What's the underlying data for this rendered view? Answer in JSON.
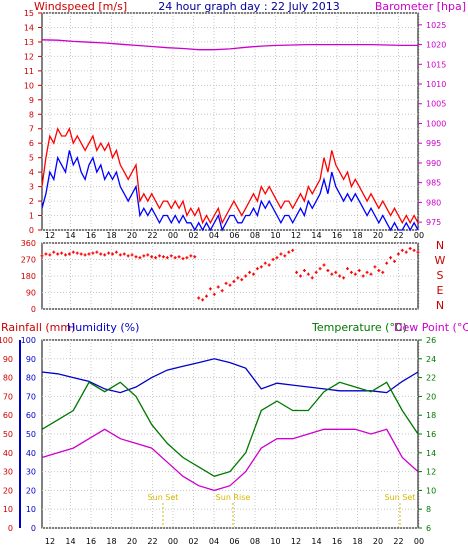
{
  "chart_data": [
    {
      "type": "line",
      "title": "24 hour graph day : 22 July 2013",
      "left_axis_label": "Windspeed [m/s]",
      "right_axis_label": "Barometer [hpa]",
      "x_ticks": [
        "12",
        "14",
        "16",
        "18",
        "20",
        "22",
        "00",
        "02",
        "04",
        "06",
        "08",
        "10",
        "12",
        "14",
        "16",
        "18",
        "20",
        "22",
        "00"
      ],
      "left_ticks": [
        "0",
        "1",
        "2",
        "3",
        "4",
        "5",
        "6",
        "7",
        "8",
        "9",
        "10",
        "11",
        "12",
        "13",
        "14",
        "15"
      ],
      "right_ticks": [
        "975",
        "980",
        "985",
        "990",
        "995",
        "1000",
        "1005",
        "1010",
        "1015",
        "1020",
        "1025"
      ],
      "left_ylim": [
        0,
        15
      ],
      "right_ylim": [
        973,
        1028
      ],
      "series": [
        {
          "axis": "right",
          "color": "#cc00cc",
          "x": [
            0,
            2,
            4,
            6,
            8,
            10,
            12,
            14,
            16,
            18,
            20,
            22,
            24,
            26,
            28,
            30,
            32,
            34,
            36,
            38,
            40,
            42,
            44,
            46,
            48
          ],
          "values": [
            1021.2,
            1021.1,
            1020.8,
            1020.6,
            1020.4,
            1020.1,
            1019.8,
            1019.5,
            1019.2,
            1019.0,
            1018.7,
            1018.7,
            1018.9,
            1019.3,
            1019.6,
            1019.8,
            1019.9,
            1020.0,
            1020.0,
            1020.0,
            1020.0,
            1020.0,
            1019.9,
            1019.8,
            1019.8
          ]
        },
        {
          "axis": "left",
          "color": "#ff0000",
          "x": [
            0,
            0.5,
            1,
            1.5,
            2,
            2.5,
            3,
            3.5,
            4,
            4.5,
            5,
            5.5,
            6,
            6.5,
            7,
            7.5,
            8,
            8.5,
            9,
            9.5,
            10,
            10.5,
            11,
            11.5,
            12,
            12.5,
            13,
            13.5,
            14,
            14.5,
            15,
            15.5,
            16,
            16.5,
            17,
            17.5,
            18,
            18.5,
            19,
            19.5,
            20,
            20.5,
            21,
            21.5,
            22,
            22.5,
            23,
            23.5,
            24,
            24.5,
            25,
            25.5,
            26,
            26.5,
            27,
            27.5,
            28,
            28.5,
            29,
            29.5,
            30,
            30.5,
            31,
            31.5,
            32,
            32.5,
            33,
            33.5,
            34,
            34.5,
            35,
            35.5,
            36,
            36.5,
            37,
            37.5,
            38,
            38.5,
            39,
            39.5,
            40,
            40.5,
            41,
            41.5,
            42,
            42.5,
            43,
            43.5,
            44,
            44.5,
            45,
            45.5,
            46,
            46.5,
            47,
            47.5,
            48
          ],
          "values": [
            3,
            5,
            6.5,
            6,
            7,
            6.5,
            6.5,
            7,
            6,
            6.5,
            6,
            5.5,
            6,
            6.5,
            5.5,
            6,
            5.5,
            6,
            5,
            5.5,
            4.5,
            4,
            3.5,
            4,
            4.5,
            2,
            2.5,
            2,
            2.5,
            2,
            1.5,
            2,
            2,
            1.5,
            2,
            1.5,
            2,
            1,
            1.5,
            1,
            1.5,
            0.5,
            1,
            0.5,
            1,
            1.5,
            0.5,
            1,
            1.5,
            2,
            1.5,
            1,
            1.5,
            2,
            2.5,
            2,
            3,
            2.5,
            3,
            2.5,
            2,
            1.5,
            2,
            2,
            1.5,
            2,
            2.5,
            2,
            3,
            2.5,
            3,
            3.5,
            5,
            4,
            5.5,
            4.5,
            4,
            3.5,
            4,
            3,
            3.5,
            3,
            2.5,
            2,
            2.5,
            2,
            1.5,
            2,
            1.5,
            1,
            1.5,
            1,
            0.5,
            1,
            0.5,
            1,
            0.5
          ]
        },
        {
          "axis": "left",
          "color": "#0000ff",
          "x": [
            0,
            0.5,
            1,
            1.5,
            2,
            2.5,
            3,
            3.5,
            4,
            4.5,
            5,
            5.5,
            6,
            6.5,
            7,
            7.5,
            8,
            8.5,
            9,
            9.5,
            10,
            10.5,
            11,
            11.5,
            12,
            12.5,
            13,
            13.5,
            14,
            14.5,
            15,
            15.5,
            16,
            16.5,
            17,
            17.5,
            18,
            18.5,
            19,
            19.5,
            20,
            20.5,
            21,
            21.5,
            22,
            22.5,
            23,
            23.5,
            24,
            24.5,
            25,
            25.5,
            26,
            26.5,
            27,
            27.5,
            28,
            28.5,
            29,
            29.5,
            30,
            30.5,
            31,
            31.5,
            32,
            32.5,
            33,
            33.5,
            34,
            34.5,
            35,
            35.5,
            36,
            36.5,
            37,
            37.5,
            38,
            38.5,
            39,
            39.5,
            40,
            40.5,
            41,
            41.5,
            42,
            42.5,
            43,
            43.5,
            44,
            44.5,
            45,
            45.5,
            46,
            46.5,
            47,
            47.5,
            48
          ],
          "values": [
            1.5,
            2.5,
            4,
            3.5,
            5,
            4.5,
            4,
            5.5,
            4.5,
            5,
            4,
            3.5,
            4.5,
            5,
            4,
            4.5,
            3.5,
            4,
            3.5,
            4,
            3,
            2.5,
            2,
            2.5,
            3,
            1,
            1.5,
            1,
            1.5,
            1,
            0.5,
            1,
            1,
            0.5,
            1,
            0.5,
            1,
            0.5,
            0.5,
            0,
            0.5,
            0,
            0.5,
            0,
            0.5,
            1,
            0,
            0.5,
            1,
            1,
            0.5,
            0.5,
            1,
            1,
            1.5,
            1,
            2,
            1.5,
            2,
            1.5,
            1,
            0.5,
            1,
            1,
            0.5,
            1,
            1.5,
            1,
            2,
            1.5,
            2,
            2.5,
            3.5,
            2.5,
            4,
            3,
            2.5,
            2,
            2.5,
            2,
            2.5,
            2,
            1.5,
            1,
            1.5,
            1,
            0.5,
            1,
            0.5,
            0,
            0.5,
            0,
            0,
            0.5,
            0,
            0.5,
            0
          ]
        }
      ]
    },
    {
      "type": "scatter",
      "left_ticks": [
        "0",
        "90",
        "180",
        "270",
        "360"
      ],
      "right_labels": [
        "N",
        "W",
        "S",
        "E",
        "N"
      ],
      "ylim": [
        0,
        360
      ],
      "color": "#ff0000",
      "x": [
        0,
        0.5,
        1,
        1.5,
        2,
        2.5,
        3,
        3.5,
        4,
        4.5,
        5,
        5.5,
        6,
        6.5,
        7,
        7.5,
        8,
        8.5,
        9,
        9.5,
        10,
        10.5,
        11,
        11.5,
        12,
        12.5,
        13,
        13.5,
        14,
        14.5,
        15,
        15.5,
        16,
        16.5,
        17,
        17.5,
        18,
        18.5,
        19,
        19.5,
        20,
        20.5,
        21,
        21.5,
        22,
        22.5,
        23,
        23.5,
        24,
        24.5,
        25,
        25.5,
        26,
        26.5,
        27,
        27.5,
        28,
        28.5,
        29,
        29.5,
        30,
        30.5,
        31,
        31.5,
        32,
        32.5,
        33,
        33.5,
        34,
        34.5,
        35,
        35.5,
        36,
        36.5,
        37,
        37.5,
        38,
        38.5,
        39,
        39.5,
        40,
        40.5,
        41,
        41.5,
        42,
        42.5,
        43,
        43.5,
        44,
        44.5,
        45,
        45.5,
        46,
        46.5,
        47,
        47.5,
        48
      ],
      "values": [
        290,
        300,
        295,
        310,
        300,
        305,
        295,
        300,
        310,
        305,
        300,
        295,
        300,
        305,
        310,
        300,
        295,
        305,
        300,
        310,
        295,
        300,
        290,
        295,
        285,
        280,
        290,
        295,
        285,
        280,
        290,
        285,
        280,
        290,
        280,
        285,
        275,
        280,
        290,
        285,
        60,
        50,
        70,
        110,
        80,
        120,
        100,
        140,
        130,
        150,
        170,
        160,
        180,
        200,
        190,
        220,
        230,
        250,
        240,
        270,
        280,
        300,
        290,
        310,
        320,
        200,
        180,
        210,
        190,
        170,
        200,
        220,
        240,
        210,
        190,
        200,
        180,
        170,
        220,
        200,
        190,
        210,
        180,
        200,
        190,
        230,
        210,
        200,
        250,
        280,
        260,
        300,
        320,
        310,
        330,
        320,
        310
      ]
    },
    {
      "type": "line",
      "left_axis_label_1": "Rainfall (mm)",
      "left_axis_label_2": "Humidity (%)",
      "right_axis_label_1": "Temperature (°C)",
      "right_axis_label_2": "Dew Point (°C)",
      "rain_ticks": [
        "0",
        "10",
        "20",
        "30",
        "40",
        "50",
        "60",
        "70",
        "80",
        "90",
        "100"
      ],
      "humidity_ticks": [
        "0",
        "10",
        "20",
        "30",
        "40",
        "50",
        "60",
        "70",
        "80",
        "90",
        "100"
      ],
      "temp_ticks": [
        "6",
        "8",
        "10",
        "12",
        "14",
        "16",
        "18",
        "20",
        "22",
        "24",
        "26"
      ],
      "humidity_ylim": [
        0,
        100
      ],
      "temp_ylim": [
        6,
        26
      ],
      "annotations": [
        "Sun Set",
        "Sun Rise",
        "Sun Set"
      ],
      "series": [
        {
          "axis": "humidity",
          "color": "#0000cc",
          "x": [
            0,
            2,
            4,
            6,
            8,
            10,
            12,
            14,
            16,
            18,
            20,
            22,
            24,
            26,
            28,
            30,
            32,
            34,
            36,
            38,
            40,
            42,
            44,
            46,
            48
          ],
          "values": [
            83,
            82,
            80,
            78,
            74,
            72,
            75,
            80,
            84,
            86,
            88,
            90,
            88,
            85,
            74,
            77,
            76,
            75,
            74,
            73,
            73,
            73,
            72,
            78,
            83
          ]
        },
        {
          "axis": "temp",
          "color": "#007700",
          "x": [
            0,
            2,
            4,
            6,
            8,
            10,
            12,
            14,
            16,
            18,
            20,
            22,
            24,
            26,
            28,
            30,
            32,
            34,
            36,
            38,
            40,
            42,
            44,
            46,
            48
          ],
          "values": [
            16.5,
            17.5,
            18.5,
            21.5,
            20.5,
            21.5,
            20,
            17,
            15,
            13.5,
            12.5,
            11.5,
            12,
            14,
            18.5,
            19.5,
            18.5,
            18.5,
            20.5,
            21.5,
            21,
            20.5,
            21.5,
            18.5,
            16
          ]
        },
        {
          "axis": "temp",
          "color": "#cc00cc",
          "x": [
            0,
            2,
            4,
            6,
            8,
            10,
            12,
            14,
            16,
            18,
            20,
            22,
            24,
            26,
            28,
            30,
            32,
            34,
            36,
            38,
            40,
            42,
            44,
            46,
            48
          ],
          "values": [
            13.5,
            14,
            14.5,
            15.5,
            16.5,
            15.5,
            15,
            14.5,
            13,
            11.5,
            10.5,
            10,
            10.5,
            12,
            14.5,
            15.5,
            15.5,
            16,
            16.5,
            16.5,
            16.5,
            16,
            16.5,
            13.5,
            12
          ]
        }
      ]
    }
  ]
}
